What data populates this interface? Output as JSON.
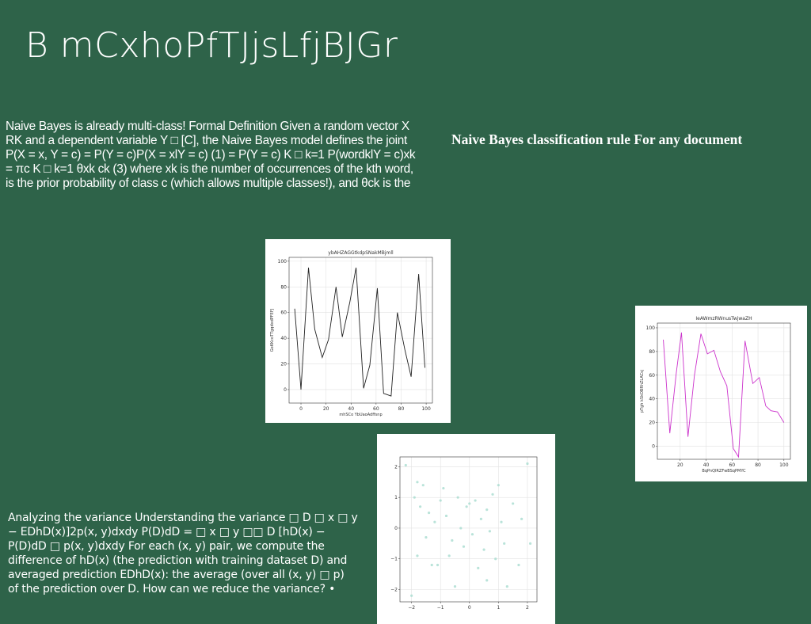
{
  "title": "B mCxhoPfTJjsLfjBJGr",
  "paragraph1": [
    "Naive Bayes is already multi-class! Formal Definition Given a random vector X",
    "RK and a dependent variable Y □ [C], the Naive Bayes model defines the joint",
    "P(X = x, Y = c) = P(Y = c)P(X = xlY = c) (1) = P(Y = c) K □ k=1 P(wordklY = c)xk",
    "= πc K □ k=1 θxk ck (3) where xk is the number of occurrences of the kth word,",
    "is the prior probability of class c (which allows multiple classes!), and θck is the"
  ],
  "heading": "Naive Bayes classification rule For any document",
  "paragraph2": [
    "Analyzing the variance Understanding the variance □ D □ x □ y",
    "− EDhD(x)]2p(x, y)dxdy P(D)dD = □ x □ y □□ D [hD(x) −",
    "P(D)dD □ p(x, y)dxdy For each (x, y) pair, we compute the",
    "difference of hD(x) (the prediction with training dataset D) and",
    "averaged prediction EDhD(x): the average (over all (x, y) □ p)",
    "of the prediction over D. How can we reduce the variance? •"
  ],
  "chart_data": [
    {
      "type": "line",
      "title": "ybAHZAGGtkdpSNakMBjmll",
      "x_label": "mhSCo YbUaoAdffsnp",
      "y_label": "GoKKcoTTgqdxdPFEFJ",
      "color": "#222222",
      "grid": true,
      "x": [
        -5,
        0,
        6,
        11,
        17,
        22,
        28,
        33,
        39,
        44,
        50,
        55,
        61,
        66,
        72,
        77,
        83,
        88,
        94,
        99
      ],
      "values": [
        63,
        0,
        95,
        47,
        25,
        39,
        80,
        41,
        68,
        95,
        1,
        19,
        79,
        -3,
        -5,
        60,
        31,
        10,
        90,
        17
      ],
      "xlim": [
        -9.5,
        105
      ],
      "ylim": [
        -10.5,
        103
      ],
      "xticks": [
        0,
        20,
        40,
        60,
        80,
        100
      ],
      "yticks": [
        0,
        20,
        40,
        60,
        80,
        100
      ]
    },
    {
      "type": "line",
      "title": "IeAWmzRWnusTwjwaZH",
      "x_label": "BqPnQlRZFwBSqPMYC",
      "y_label": "pTgh kSkOBRhZLACsj",
      "color": "#cc33cc",
      "grid": true,
      "x": [
        7,
        12,
        17,
        21,
        26,
        31,
        36,
        41,
        46,
        51,
        56,
        61,
        65,
        70,
        76,
        81,
        86,
        90,
        95,
        100
      ],
      "values": [
        90,
        11,
        62,
        96,
        8,
        60,
        95,
        78,
        81,
        63,
        51,
        -2,
        -9,
        89,
        53,
        58,
        34,
        30,
        29,
        20
      ],
      "xlim": [
        2.4,
        105
      ],
      "ylim": [
        -11,
        104
      ],
      "xticks": [
        20,
        40,
        60,
        80,
        100
      ],
      "yticks": [
        0,
        20,
        40,
        60,
        80,
        100
      ]
    },
    {
      "type": "scatter",
      "color": "#a8dccf",
      "grid": true,
      "x": [
        -2.2,
        -1.8,
        -1.9,
        -1.6,
        -1.7,
        -1.4,
        -1.2,
        -1.5,
        -1.8,
        -1.3,
        -1.1,
        -2.0,
        -1.0,
        -0.9,
        -0.8,
        -0.6,
        -0.7,
        -0.4,
        -0.3,
        -0.2,
        -0.1,
        0.0,
        0.1,
        0.2,
        0.3,
        0.4,
        0.5,
        0.6,
        0.7,
        0.8,
        0.9,
        1.0,
        1.1,
        1.2,
        1.3,
        1.5,
        1.7,
        1.8,
        2.0,
        2.1,
        -0.5,
        0.6
      ],
      "y": [
        2.05,
        1.5,
        1.0,
        1.4,
        0.7,
        0.5,
        0.2,
        -0.3,
        -0.9,
        -1.2,
        -1.2,
        -2.2,
        0.9,
        1.3,
        0.4,
        -0.4,
        -0.9,
        1.0,
        0.0,
        -0.6,
        0.7,
        0.8,
        -0.2,
        0.9,
        -1.3,
        0.3,
        -0.7,
        0.6,
        -0.1,
        1.1,
        -1.0,
        1.4,
        0.2,
        -0.5,
        -1.9,
        0.8,
        -1.2,
        0.3,
        2.1,
        -0.5,
        -1.9,
        -1.7
      ],
      "xlim": [
        -2.4,
        2.33
      ],
      "ylim": [
        -2.4,
        2.32
      ],
      "xticks": [
        {
          "value": -2,
          "label": "−2"
        },
        {
          "value": -1,
          "label": "−1"
        },
        0,
        1,
        2
      ],
      "yticks": [
        {
          "value": -2,
          "label": "−2"
        },
        {
          "value": -1,
          "label": "−1"
        },
        0,
        1,
        2
      ]
    }
  ]
}
